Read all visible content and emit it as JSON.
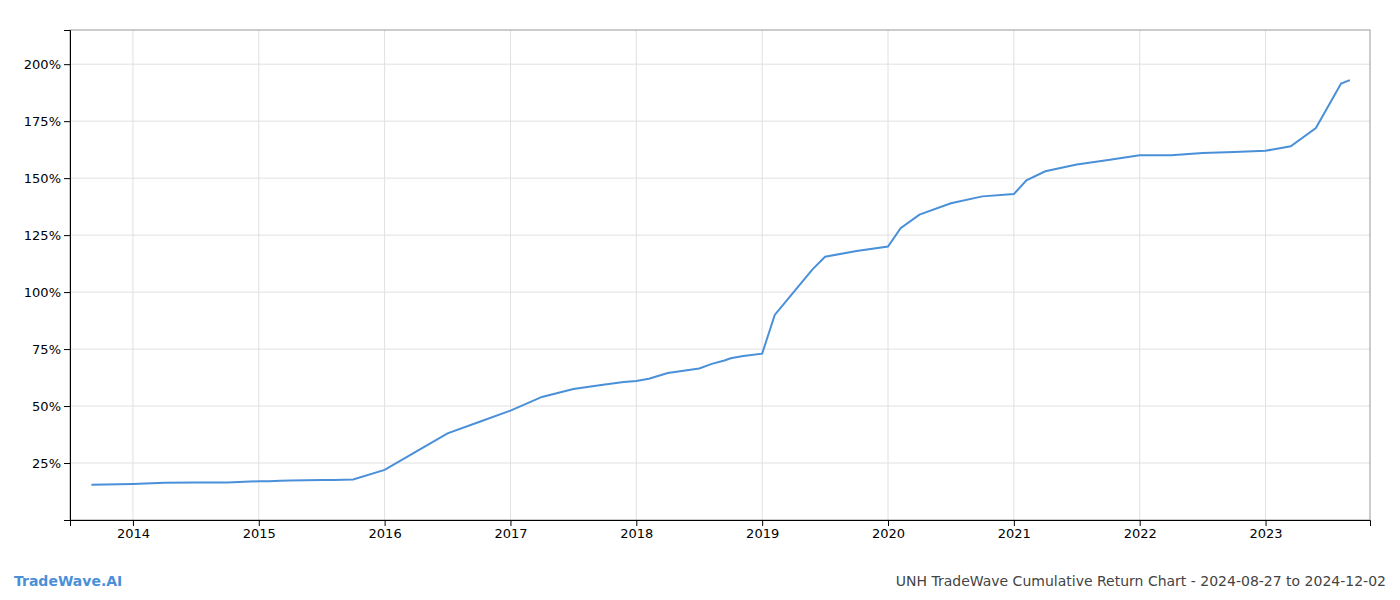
{
  "chart_data": {
    "type": "line",
    "annotations": [
      "TradeWave.AI",
      "UNH TradeWave Cumulative Return Chart - 2024-08-27 to 2024-12-02"
    ],
    "x": [
      2013.67,
      2014.0,
      2014.25,
      2014.5,
      2014.75,
      2015.0,
      2015.08,
      2015.17,
      2015.25,
      2015.5,
      2015.6,
      2015.75,
      2016.0,
      2016.25,
      2016.5,
      2016.75,
      2017.0,
      2017.25,
      2017.5,
      2017.75,
      2017.9,
      2018.0,
      2018.1,
      2018.25,
      2018.5,
      2018.6,
      2018.7,
      2018.75,
      2018.85,
      2019.0,
      2019.1,
      2019.25,
      2019.4,
      2019.5,
      2019.75,
      2020.0,
      2020.1,
      2020.25,
      2020.5,
      2020.75,
      2021.0,
      2021.1,
      2021.25,
      2021.5,
      2021.75,
      2022.0,
      2022.25,
      2022.5,
      2022.75,
      2023.0,
      2023.2,
      2023.4,
      2023.6,
      2023.67
    ],
    "values": [
      0.155,
      0.158,
      0.163,
      0.165,
      0.165,
      0.17,
      0.17,
      0.172,
      0.173,
      0.175,
      0.176,
      0.178,
      0.22,
      0.3,
      0.38,
      0.43,
      0.48,
      0.54,
      0.575,
      0.595,
      0.605,
      0.61,
      0.62,
      0.645,
      0.665,
      0.685,
      0.7,
      0.71,
      0.72,
      0.73,
      0.9,
      1.0,
      1.1,
      1.155,
      1.18,
      1.2,
      1.28,
      1.34,
      1.39,
      1.42,
      1.43,
      1.49,
      1.53,
      1.56,
      1.58,
      1.6,
      1.6,
      1.61,
      1.615,
      1.62,
      1.64,
      1.72,
      1.915,
      1.93
    ],
    "color": "#4a90d9",
    "xlim": [
      2013.5,
      2023.83
    ],
    "ylim": [
      0.0,
      2.15
    ],
    "xticks": [
      2014,
      2015,
      2016,
      2017,
      2018,
      2019,
      2020,
      2021,
      2022,
      2023
    ],
    "yticks": [
      {
        "value": 0.25,
        "label": "25%"
      },
      {
        "value": 0.5,
        "label": "50%"
      },
      {
        "value": 0.75,
        "label": "75%"
      },
      {
        "value": 1.0,
        "label": "100%"
      },
      {
        "value": 1.25,
        "label": "125%"
      },
      {
        "value": 1.5,
        "label": "150%"
      },
      {
        "value": 1.75,
        "label": "175%"
      },
      {
        "value": 2.0,
        "label": "200%"
      }
    ],
    "grid": true
  }
}
